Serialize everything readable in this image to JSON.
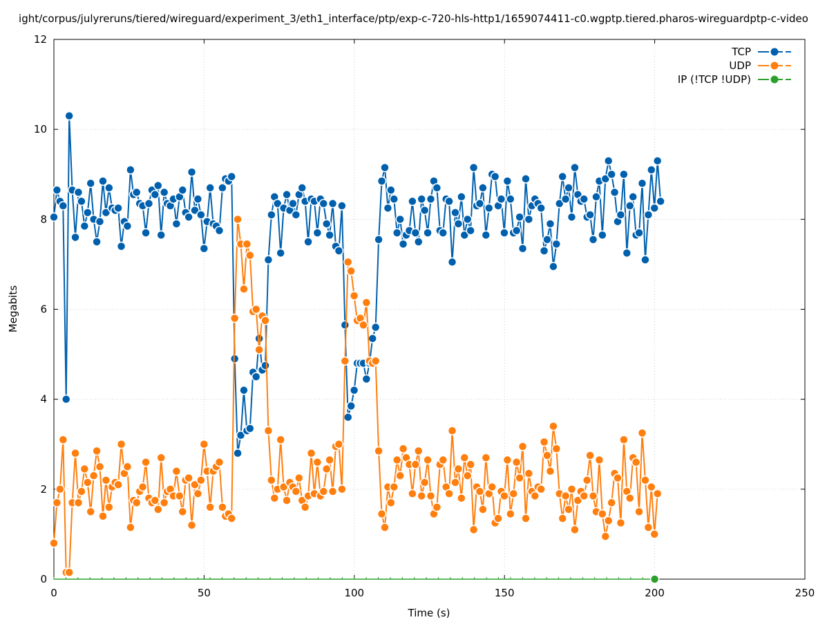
{
  "chart_data": {
    "type": "line",
    "title": "ight/corpus/julyreruns/tiered/wireguard/experiment_3/eth1_interface/ptp/exp-c-720-hls-http1/1659074411-c0.wgptp.tiered.pharos-wireguardptp-c-video",
    "xlabel": "Time (s)",
    "ylabel": "Megabits",
    "xlim": [
      0,
      250
    ],
    "ylim": [
      0,
      12
    ],
    "xticks": [
      0,
      50,
      100,
      150,
      200,
      250
    ],
    "yticks": [
      0,
      2,
      4,
      6,
      8,
      10,
      12
    ],
    "grid": true,
    "legend_position": "top-right",
    "x_start": 0,
    "x_step": 1.02,
    "series": [
      {
        "name": "TCP",
        "color": "#0060ad",
        "values": [
          8.05,
          8.65,
          8.4,
          8.3,
          4.0,
          10.3,
          8.65,
          7.6,
          8.6,
          8.4,
          7.85,
          8.15,
          8.8,
          8.0,
          7.5,
          7.95,
          8.85,
          8.15,
          8.7,
          8.25,
          8.2,
          8.25,
          7.4,
          7.95,
          7.85,
          9.1,
          8.55,
          8.6,
          8.35,
          8.3,
          7.7,
          8.35,
          8.65,
          8.55,
          8.75,
          7.65,
          8.6,
          8.35,
          8.3,
          8.45,
          7.9,
          8.5,
          8.65,
          8.15,
          8.05,
          9.05,
          8.2,
          8.45,
          8.1,
          7.35,
          7.95,
          8.7,
          7.9,
          7.85,
          7.75,
          8.7,
          8.9,
          8.85,
          8.95,
          4.9,
          2.8,
          3.2,
          4.2,
          3.3,
          3.35,
          4.6,
          4.5,
          5.35,
          4.65,
          4.75,
          7.1,
          8.1,
          8.5,
          8.35,
          7.25,
          8.25,
          8.55,
          8.2,
          8.35,
          8.1,
          8.55,
          8.7,
          8.4,
          7.5,
          8.45,
          8.4,
          7.7,
          8.45,
          8.35,
          7.9,
          7.65,
          8.35,
          7.4,
          7.3,
          8.3,
          5.65,
          3.6,
          3.85,
          4.2,
          4.8,
          4.8,
          4.8,
          4.45,
          4.8,
          5.35,
          5.6,
          7.55,
          8.85,
          9.15,
          8.25,
          8.65,
          8.45,
          7.7,
          8.0,
          7.45,
          7.65,
          7.75,
          8.4,
          7.7,
          7.5,
          8.45,
          8.2,
          7.7,
          8.45,
          8.85,
          8.7,
          7.75,
          7.7,
          8.45,
          8.4,
          7.05,
          8.15,
          7.9,
          8.5,
          7.65,
          8.0,
          7.75,
          9.15,
          8.3,
          8.35,
          8.7,
          7.65,
          8.25,
          9.0,
          8.95,
          8.3,
          8.45,
          7.7,
          8.85,
          8.45,
          7.7,
          7.75,
          8.05,
          7.35,
          8.9,
          8.0,
          8.3,
          8.45,
          8.35,
          8.25,
          7.3,
          7.55,
          7.9,
          6.95,
          7.45,
          8.35,
          8.95,
          8.45,
          8.7,
          8.05,
          9.15,
          8.55,
          8.4,
          8.45,
          8.05,
          8.1,
          7.55,
          8.5,
          8.85,
          7.65,
          8.9,
          9.3,
          9.0,
          8.6,
          7.95,
          8.1,
          9.0,
          7.25,
          8.3,
          8.5,
          7.65,
          7.7,
          8.8,
          7.1,
          8.1,
          9.1,
          8.25,
          9.3,
          8.4
        ]
      },
      {
        "name": "UDP",
        "color": "#ff7f0e",
        "values": [
          0.8,
          1.7,
          2.0,
          3.1,
          0.15,
          0.15,
          1.7,
          2.8,
          1.7,
          1.95,
          2.45,
          2.15,
          1.5,
          2.3,
          2.85,
          2.5,
          1.4,
          2.2,
          1.6,
          2.05,
          2.15,
          2.1,
          3.0,
          2.35,
          2.5,
          1.15,
          1.75,
          1.7,
          1.95,
          2.05,
          2.6,
          1.8,
          1.7,
          1.75,
          1.55,
          2.7,
          1.7,
          1.95,
          2.0,
          1.85,
          2.4,
          1.85,
          1.5,
          2.2,
          2.25,
          1.2,
          2.1,
          1.9,
          2.2,
          3.0,
          2.4,
          1.6,
          2.4,
          2.5,
          2.6,
          1.6,
          1.4,
          1.45,
          1.35,
          5.8,
          8.0,
          7.45,
          6.45,
          7.45,
          7.2,
          5.95,
          6.0,
          5.1,
          5.85,
          5.75,
          3.3,
          2.2,
          1.8,
          2.0,
          3.1,
          2.05,
          1.75,
          2.15,
          2.05,
          1.95,
          2.25,
          1.75,
          1.6,
          1.85,
          2.8,
          1.9,
          2.6,
          1.85,
          1.95,
          2.45,
          2.65,
          1.95,
          2.95,
          3.0,
          2.0,
          4.85,
          7.05,
          6.85,
          6.3,
          5.75,
          5.8,
          5.65,
          6.15,
          4.85,
          4.8,
          4.85,
          2.85,
          1.45,
          1.15,
          2.05,
          1.7,
          2.05,
          2.65,
          2.3,
          2.9,
          2.7,
          2.55,
          1.9,
          2.55,
          2.85,
          1.85,
          2.15,
          2.65,
          1.85,
          1.45,
          1.6,
          2.55,
          2.65,
          2.05,
          1.9,
          3.3,
          2.15,
          2.45,
          1.8,
          2.7,
          2.3,
          2.55,
          1.1,
          2.05,
          1.95,
          1.55,
          2.7,
          1.9,
          2.05,
          1.25,
          1.35,
          1.95,
          1.85,
          2.65,
          1.45,
          1.9,
          2.6,
          2.25,
          2.95,
          1.35,
          2.35,
          1.95,
          1.85,
          2.05,
          2.0,
          3.05,
          2.75,
          2.4,
          3.4,
          2.9,
          1.9,
          1.35,
          1.85,
          1.55,
          2.0,
          1.1,
          1.75,
          1.95,
          1.85,
          2.2,
          2.75,
          1.85,
          1.5,
          2.65,
          1.45,
          0.95,
          1.3,
          1.7,
          2.35,
          2.25,
          1.25,
          3.1,
          1.95,
          1.8,
          2.7,
          2.6,
          1.5,
          3.25,
          2.2,
          1.15,
          2.05,
          1.0,
          1.9
        ]
      },
      {
        "name": "IP (!TCP  !UDP)",
        "color": "#2ca02c",
        "points": [
          [
            200,
            0
          ]
        ]
      }
    ]
  }
}
